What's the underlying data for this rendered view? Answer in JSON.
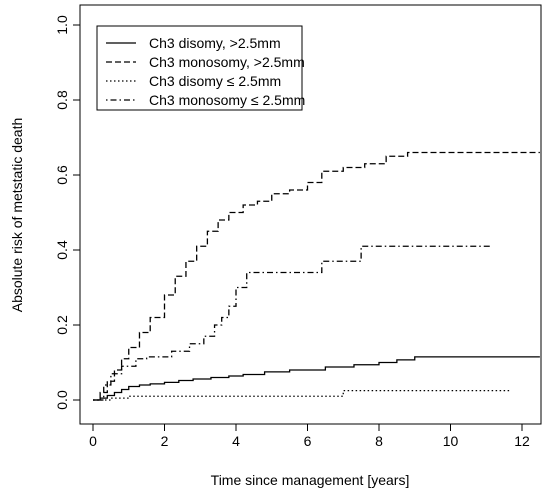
{
  "chart_data": {
    "type": "line",
    "step": true,
    "xlabel": "Time since management [years]",
    "ylabel": "Absolute risk of metstatic death",
    "xlim": [
      -0.8,
      12.6
    ],
    "ylim": [
      0,
      1.0
    ],
    "xticks": [
      0,
      2,
      4,
      6,
      8,
      10,
      12
    ],
    "yticks": [
      0.0,
      0.2,
      0.4,
      0.6,
      0.8,
      1.0
    ],
    "xtick_labels": [
      "0",
      "2",
      "4",
      "6",
      "8",
      "10",
      "12"
    ],
    "ytick_labels": [
      "0.0",
      "0.2",
      "0.4",
      "0.6",
      "0.8",
      "1.0"
    ],
    "legend_position": "top-left",
    "series": [
      {
        "name": "Ch3 disomy, >2.5mm",
        "line_style": "solid",
        "x": [
          0,
          0.2,
          0.4,
          0.6,
          0.8,
          1.0,
          1.3,
          1.6,
          2.0,
          2.4,
          2.8,
          3.3,
          3.8,
          4.2,
          4.8,
          5.5,
          6.5,
          7.3,
          8.0,
          8.5,
          9.0,
          12.5
        ],
        "y": [
          0.0,
          0.005,
          0.012,
          0.02,
          0.028,
          0.036,
          0.04,
          0.043,
          0.047,
          0.052,
          0.056,
          0.06,
          0.064,
          0.068,
          0.075,
          0.08,
          0.088,
          0.094,
          0.1,
          0.107,
          0.115,
          0.115
        ]
      },
      {
        "name": "Ch3 monosomy, >2.5mm",
        "line_style": "dashed",
        "x": [
          0,
          0.2,
          0.4,
          0.6,
          0.8,
          1.0,
          1.3,
          1.6,
          2.0,
          2.3,
          2.6,
          2.9,
          3.2,
          3.5,
          3.8,
          4.2,
          4.6,
          5.0,
          5.5,
          6.0,
          6.4,
          7.0,
          7.6,
          8.2,
          8.8,
          12.5
        ],
        "y": [
          0.0,
          0.02,
          0.05,
          0.08,
          0.11,
          0.14,
          0.18,
          0.22,
          0.28,
          0.33,
          0.37,
          0.41,
          0.45,
          0.48,
          0.5,
          0.52,
          0.53,
          0.55,
          0.56,
          0.58,
          0.61,
          0.62,
          0.63,
          0.65,
          0.66,
          0.66
        ]
      },
      {
        "name": "Ch3 disomy ≤ 2.5mm",
        "line_style": "dotted",
        "x": [
          0,
          0.5,
          1.0,
          6.8,
          7.0,
          11.7
        ],
        "y": [
          0.0,
          0.005,
          0.01,
          0.01,
          0.025,
          0.025
        ]
      },
      {
        "name": "Ch3 monosomy ≤ 2.5mm",
        "line_style": "dotdash",
        "x": [
          0,
          0.3,
          0.5,
          0.8,
          1.2,
          1.5,
          2.2,
          2.7,
          3.1,
          3.4,
          3.6,
          3.8,
          4.0,
          4.3,
          5.0,
          6.4,
          7.5,
          11.1
        ],
        "y": [
          0.0,
          0.04,
          0.07,
          0.09,
          0.11,
          0.115,
          0.13,
          0.15,
          0.17,
          0.2,
          0.22,
          0.25,
          0.3,
          0.34,
          0.34,
          0.37,
          0.41,
          0.41
        ]
      }
    ]
  }
}
